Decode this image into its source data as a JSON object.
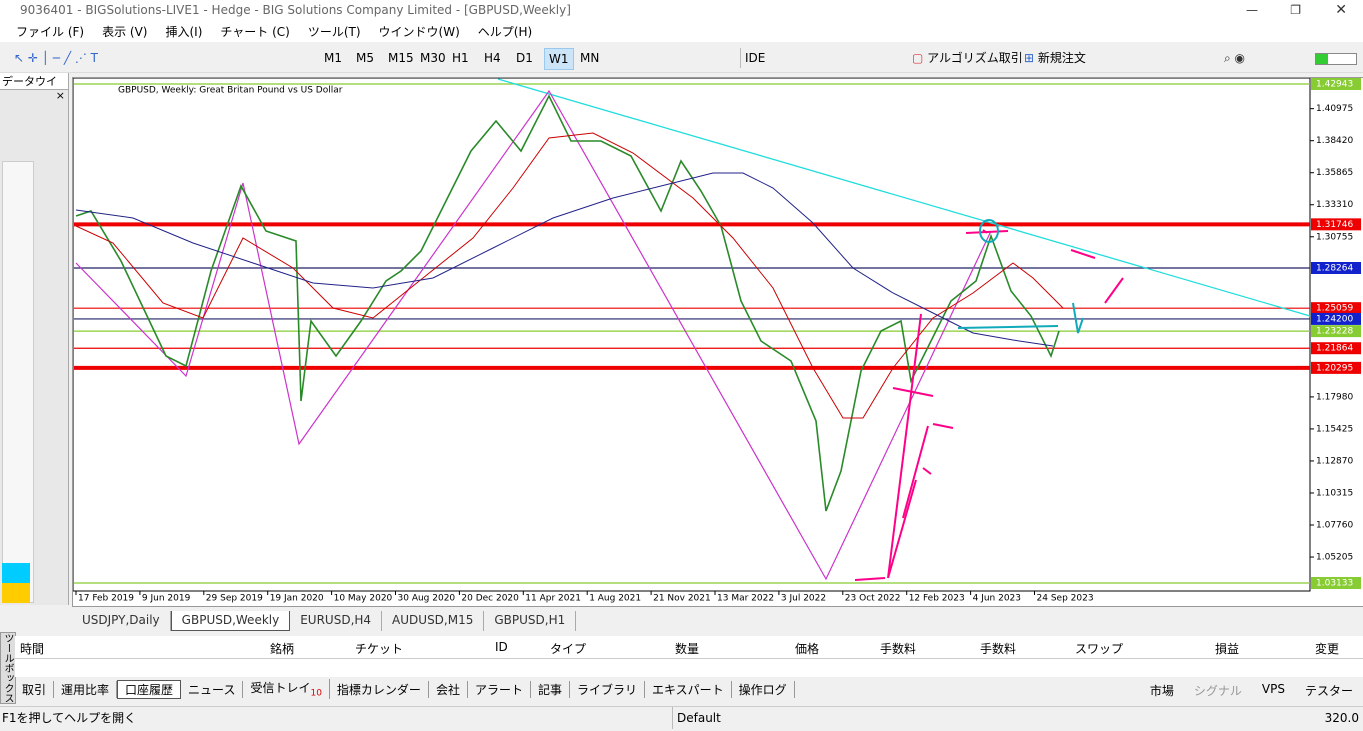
{
  "window": {
    "title": "9036401 - BIGSolutions-LIVE1 - Hedge - BIG Solutions Company Limited - [GBPUSD,Weekly]"
  },
  "menu": [
    "ファイル (F)",
    "表示 (V)",
    "挿入(I)",
    "チャート (C)",
    "ツール(T)",
    "ウインドウ(W)",
    "ヘルプ(H)"
  ],
  "toolbar": {
    "timeframes": [
      "M1",
      "M5",
      "M15",
      "M30",
      "H1",
      "H4",
      "D1",
      "W1",
      "MN"
    ],
    "active_timeframe": 7,
    "ide": "IDE",
    "algo_trading": "アルゴリズム取引",
    "new_order": "新規注文"
  },
  "data_window": {
    "title": "データウイ"
  },
  "chart": {
    "header": "GBPUSD, Weekly:  Great Britan Pound vs US Dollar",
    "price_labels": [
      {
        "text": "1.42943",
        "style": "green"
      },
      {
        "text": "1.40975",
        "style": "plain"
      },
      {
        "text": "1.38420",
        "style": "plain"
      },
      {
        "text": "1.35865",
        "style": "plain"
      },
      {
        "text": "1.33310",
        "style": "plain"
      },
      {
        "text": "1.31746",
        "style": "red-thick"
      },
      {
        "text": "1.30755",
        "style": "plain"
      },
      {
        "text": "1.28264",
        "style": "blue"
      },
      {
        "text": "1.25059",
        "style": "red"
      },
      {
        "text": "1.24200",
        "style": "blue"
      },
      {
        "text": "1.23228",
        "style": "green"
      },
      {
        "text": "1.21864",
        "style": "red"
      },
      {
        "text": "1.20295",
        "style": "red-thick"
      },
      {
        "text": "1.17980",
        "style": "plain"
      },
      {
        "text": "1.15425",
        "style": "plain"
      },
      {
        "text": "1.12870",
        "style": "plain"
      },
      {
        "text": "1.10315",
        "style": "plain"
      },
      {
        "text": "1.07760",
        "style": "plain"
      },
      {
        "text": "1.05205",
        "style": "plain"
      },
      {
        "text": "1.03133",
        "style": "green"
      }
    ],
    "dates": [
      "17 Feb 2019",
      "9 Jun 2019",
      "29 Sep 2019",
      "19 Jan 2020",
      "10 May 2020",
      "30 Aug 2020",
      "20 Dec 2020",
      "11 Apr 2021",
      "1 Aug 2021",
      "21 Nov 2021",
      "13 Mar 2022",
      "3 Jul 2022",
      "23 Oct 2022",
      "12 Feb 2023",
      "4 Jun 2023",
      "24 Sep 2023"
    ]
  },
  "chart_tabs": {
    "items": [
      "USDJPY,Daily",
      "GBPUSD,Weekly",
      "EURUSD,H4",
      "AUDUSD,M15",
      "GBPUSD,H1"
    ],
    "active": 1
  },
  "toolbox": {
    "side_label": "ツールボックス",
    "columns": [
      "時間",
      "銘柄",
      "チケット",
      "ID",
      "タイプ",
      "数量",
      "価格",
      "手数料",
      "手数料",
      "スワップ",
      "損益",
      "変更"
    ],
    "tabs": [
      "取引",
      "運用比率",
      "口座履歴",
      "ニュース",
      "受信トレイ",
      "指標カレンダー",
      "会社",
      "アラート",
      "記事",
      "ライブラリ",
      "エキスパート",
      "操作ログ"
    ],
    "active_tab": 2,
    "inbox_index": 4,
    "inbox_count": "10",
    "right_tabs": [
      "市場",
      "シグナル",
      "VPS",
      "テスター"
    ]
  },
  "status": {
    "help": "F1を押してヘルプを開く",
    "profile": "Default",
    "speed": "320.0"
  }
}
